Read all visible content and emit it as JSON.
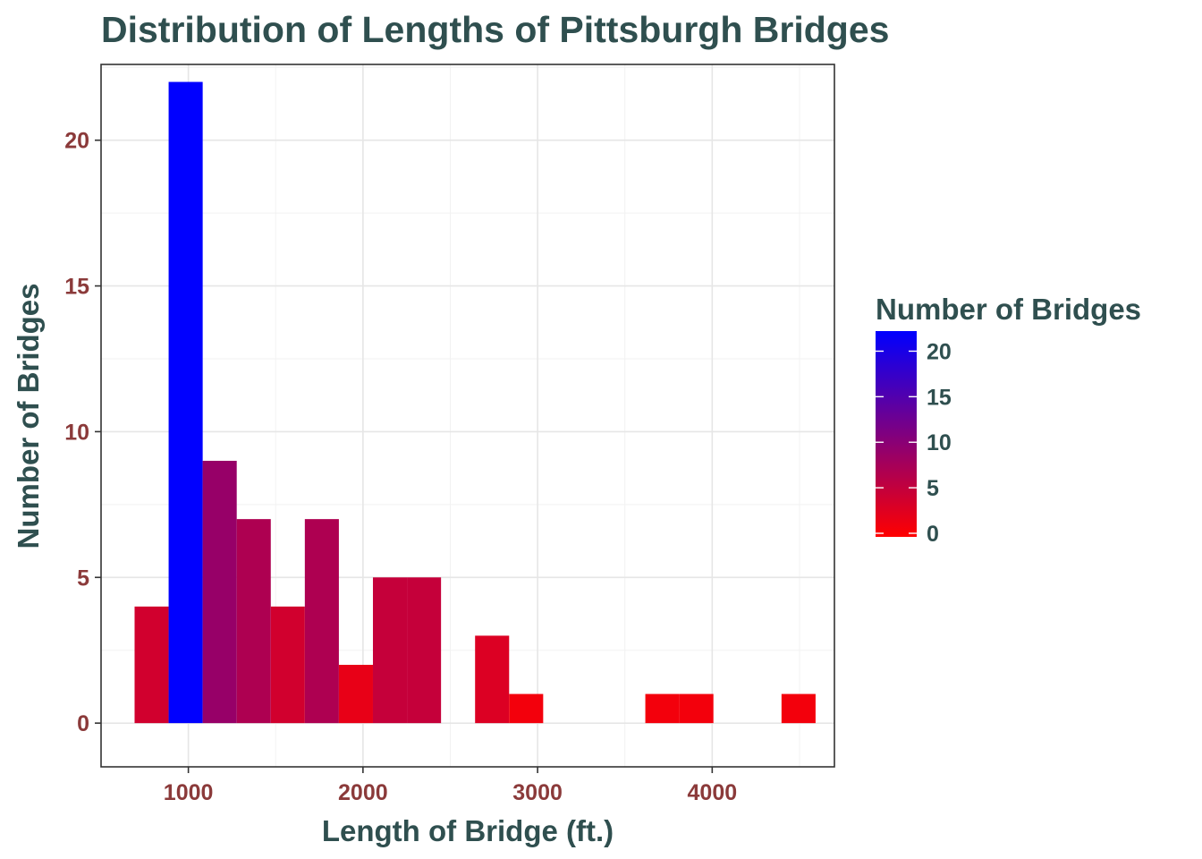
{
  "chart_data": {
    "type": "bar",
    "title": "Distribution of Lengths of Pittsburgh Bridges",
    "xlabel": "Length of Bridge (ft.)",
    "ylabel": "Number of Bridges",
    "xlim": [
      500,
      4700
    ],
    "ylim": [
      -1.5,
      22.6
    ],
    "x_ticks": [
      1000,
      2000,
      3000,
      4000
    ],
    "y_ticks": [
      0,
      5,
      10,
      15,
      20
    ],
    "grid": true,
    "bin_width": 195,
    "bins": [
      {
        "x_min": 692,
        "x_max": 887,
        "count": 4
      },
      {
        "x_min": 887,
        "x_max": 1082,
        "count": 22
      },
      {
        "x_min": 1082,
        "x_max": 1277,
        "count": 9
      },
      {
        "x_min": 1277,
        "x_max": 1472,
        "count": 7
      },
      {
        "x_min": 1472,
        "x_max": 1667,
        "count": 4
      },
      {
        "x_min": 1667,
        "x_max": 1862,
        "count": 7
      },
      {
        "x_min": 1862,
        "x_max": 2057,
        "count": 2
      },
      {
        "x_min": 2057,
        "x_max": 2252,
        "count": 5
      },
      {
        "x_min": 2252,
        "x_max": 2447,
        "count": 5
      },
      {
        "x_min": 2447,
        "x_max": 2642,
        "count": 0
      },
      {
        "x_min": 2642,
        "x_max": 2837,
        "count": 3
      },
      {
        "x_min": 2837,
        "x_max": 3032,
        "count": 1
      },
      {
        "x_min": 3032,
        "x_max": 3227,
        "count": 0
      },
      {
        "x_min": 3227,
        "x_max": 3422,
        "count": 0
      },
      {
        "x_min": 3422,
        "x_max": 3617,
        "count": 0
      },
      {
        "x_min": 3617,
        "x_max": 3812,
        "count": 1
      },
      {
        "x_min": 3812,
        "x_max": 4007,
        "count": 1
      },
      {
        "x_min": 4007,
        "x_max": 4202,
        "count": 0
      },
      {
        "x_min": 4202,
        "x_max": 4397,
        "count": 0
      },
      {
        "x_min": 4397,
        "x_max": 4592,
        "count": 1
      }
    ],
    "color_scale": {
      "low_color": "#FF0000",
      "high_color": "#0000FF",
      "range": [
        0,
        22
      ]
    },
    "legend": {
      "title": "Number of Bridges",
      "position": "right",
      "breaks": [
        0,
        5,
        10,
        15,
        20
      ],
      "labels": [
        "0",
        "5",
        "10",
        "15",
        "20"
      ]
    }
  }
}
